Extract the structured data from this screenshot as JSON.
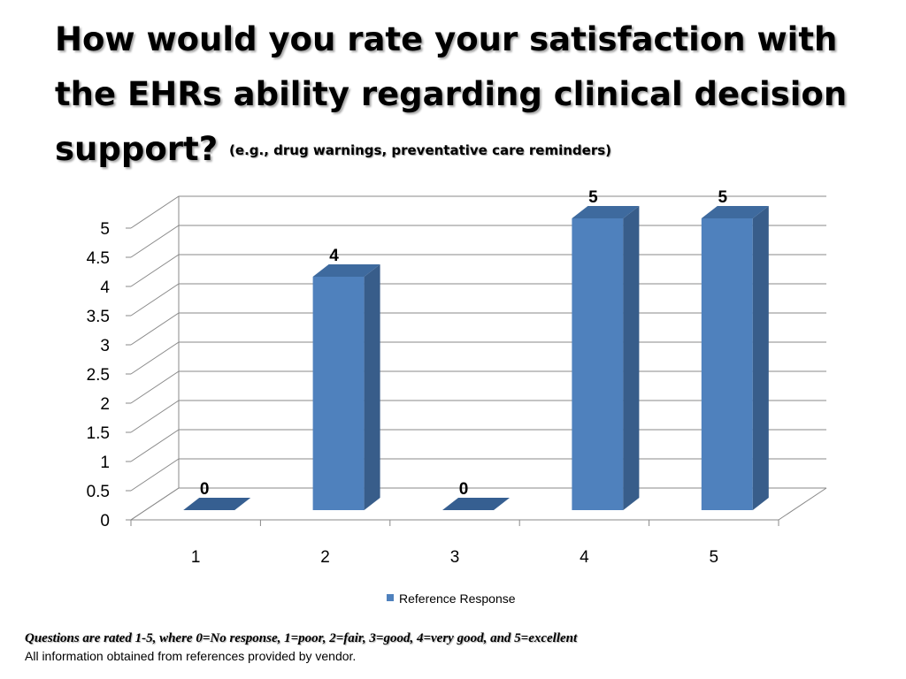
{
  "slide": {
    "title": "How would you rate your satisfaction with the EHRs ability regarding clinical decision support?",
    "subtitle": "(e.g., drug warnings, preventative care reminders)",
    "footnote": "Questions are rated 1-5, where 0=No response, 1=poor, 2=fair, 3=good, 4=very good, and 5=excellent",
    "source": "All information obtained from references provided by vendor."
  },
  "chart_data": {
    "type": "bar",
    "categories": [
      "1",
      "2",
      "3",
      "4",
      "5"
    ],
    "series": [
      {
        "name": "Reference Response",
        "values": [
          0,
          4,
          0,
          5,
          5
        ],
        "color": "#4F81BD"
      }
    ],
    "data_labels": [
      "0",
      "4",
      "0",
      "5",
      "5"
    ],
    "ylim": [
      0,
      5
    ],
    "yticks": [
      "0",
      "0.5",
      "1",
      "1.5",
      "2",
      "2.5",
      "3",
      "3.5",
      "4",
      "4.5",
      "5"
    ],
    "grid": true,
    "three_d": true,
    "legend_position": "bottom"
  }
}
